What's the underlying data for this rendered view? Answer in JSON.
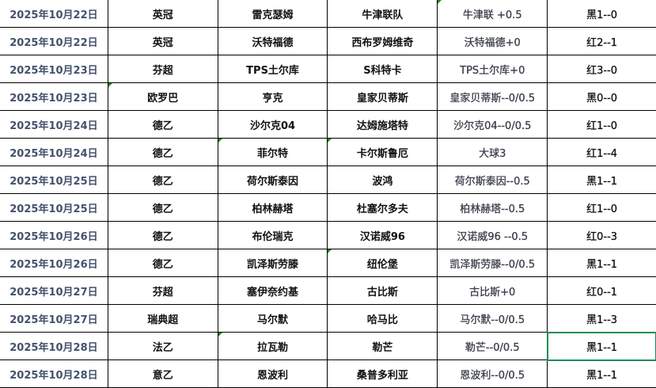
{
  "accent_color": "#1e8c5a",
  "selected_cell": {
    "row": 12,
    "column": "result"
  },
  "rows": [
    {
      "date": "2025年10月22日",
      "league": "英冠",
      "home": "雷克瑟姆",
      "away": "牛津联队",
      "handicap": "牛津联  +0.5",
      "result": "黑1--0"
    },
    {
      "date": "2025年10月22日",
      "league": "英冠",
      "home": "沃特福德",
      "away": "西布罗姆维奇",
      "handicap": "沃特福德+0",
      "result": "红2--1"
    },
    {
      "date": "2025年10月23日",
      "league": "芬超",
      "home": "TPS土尔库",
      "away": "S科特卡",
      "handicap": "TPS土尔库+0",
      "result": "红3--0"
    },
    {
      "date": "2025年10月23日",
      "league": "欧罗巴",
      "home": "亨克",
      "away": "皇家贝蒂斯",
      "handicap": "皇家贝蒂斯--0/0.5",
      "result": "黑0--0"
    },
    {
      "date": "2025年10月24日",
      "league": "德乙",
      "home": "沙尔克04",
      "away": "达姆施塔特",
      "handicap": "沙尔克04--0/0.5",
      "result": "红1--0"
    },
    {
      "date": "2025年10月24日",
      "league": "德乙",
      "home": "菲尔特",
      "away": "卡尔斯鲁厄",
      "handicap": "大球3",
      "result": "红1--4"
    },
    {
      "date": "2025年10月25日",
      "league": "德乙",
      "home": "荷尔斯泰因",
      "away": "波鸿",
      "handicap": "荷尔斯泰因--0.5",
      "result": "黑1--1"
    },
    {
      "date": "2025年10月25日",
      "league": "德乙",
      "home": "柏林赫塔",
      "away": "杜塞尔多夫",
      "handicap": "柏林赫塔--0.5",
      "result": "红1--0"
    },
    {
      "date": "2025年10月26日",
      "league": "德乙",
      "home": "布伦瑞克",
      "away": "汉诺威96",
      "handicap": "汉诺威96 --0.5",
      "result": "红0--3"
    },
    {
      "date": "2025年10月26日",
      "league": "德乙",
      "home": "凯泽斯劳滕",
      "away": "纽伦堡",
      "handicap": "凯泽斯劳滕--0/0.5",
      "result": "黑1--1"
    },
    {
      "date": "2025年10月27日",
      "league": "芬超",
      "home": "塞伊奈约基",
      "away": "古比斯",
      "handicap": "古比斯+0",
      "result": "红0--1"
    },
    {
      "date": "2025年10月27日",
      "league": "瑞典超",
      "home": "马尔默",
      "away": "哈马比",
      "handicap": "马尔默--0/0.5",
      "result": "黑1--3"
    },
    {
      "date": "2025年10月28日",
      "league": "法乙",
      "home": "拉瓦勒",
      "away": "勒芒",
      "handicap": "勒芒--0/0.5",
      "result": "黑1--1"
    },
    {
      "date": "2025年10月28日",
      "league": "意乙",
      "home": "恩波利",
      "away": "桑普多利亚",
      "handicap": "恩波利--0/0.5",
      "result": "黑1--1"
    }
  ]
}
